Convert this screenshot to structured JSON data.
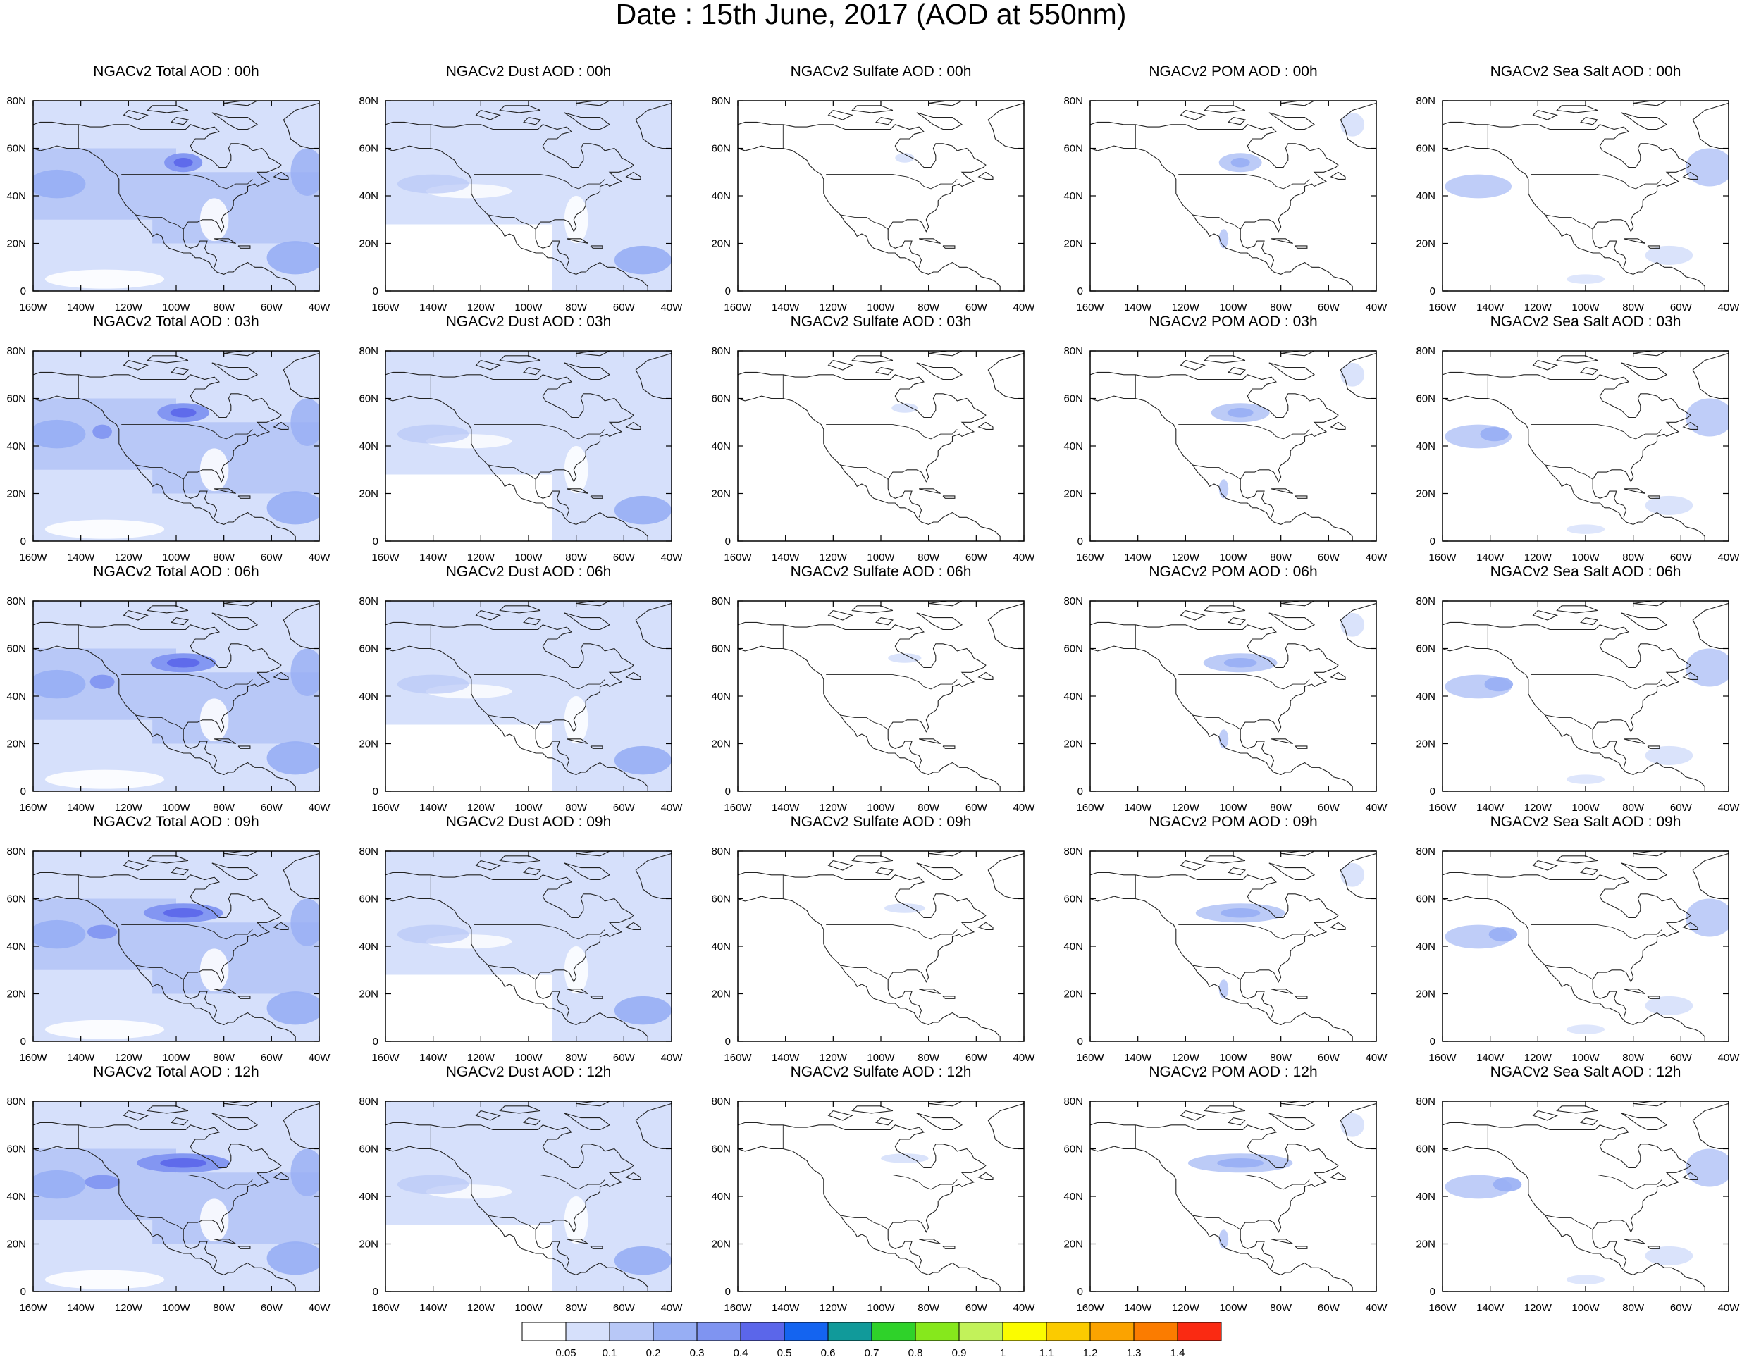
{
  "title": "Date : 15th June, 2017 (AOD at 550nm)",
  "panels": [
    {
      "title": "NGACv2 Total AOD : 00h",
      "species": "total"
    },
    {
      "title": "NGACv2 Dust AOD : 00h",
      "species": "dust"
    },
    {
      "title": "NGACv2 Sulfate AOD : 00h",
      "species": "sulfate"
    },
    {
      "title": "NGACv2 POM AOD : 00h",
      "species": "pom"
    },
    {
      "title": "NGACv2 Sea Salt AOD : 00h",
      "species": "seasalt"
    },
    {
      "title": "NGACv2 Total AOD : 03h",
      "species": "total"
    },
    {
      "title": "NGACv2 Dust AOD : 03h",
      "species": "dust"
    },
    {
      "title": "NGACv2 Sulfate AOD : 03h",
      "species": "sulfate"
    },
    {
      "title": "NGACv2 POM AOD : 03h",
      "species": "pom"
    },
    {
      "title": "NGACv2 Sea Salt AOD : 03h",
      "species": "seasalt"
    },
    {
      "title": "NGACv2 Total AOD : 06h",
      "species": "total"
    },
    {
      "title": "NGACv2 Dust AOD : 06h",
      "species": "dust"
    },
    {
      "title": "NGACv2 Sulfate AOD : 06h",
      "species": "sulfate"
    },
    {
      "title": "NGACv2 POM AOD : 06h",
      "species": "pom"
    },
    {
      "title": "NGACv2 Sea Salt AOD : 06h",
      "species": "seasalt"
    },
    {
      "title": "NGACv2 Total AOD : 09h",
      "species": "total"
    },
    {
      "title": "NGACv2 Dust AOD : 09h",
      "species": "dust"
    },
    {
      "title": "NGACv2 Sulfate AOD : 09h",
      "species": "sulfate"
    },
    {
      "title": "NGACv2 POM AOD : 09h",
      "species": "pom"
    },
    {
      "title": "NGACv2 Sea Salt  AOD : 09h",
      "species": "seasalt"
    },
    {
      "title": "NGACv2 Total AOD  : 12h",
      "species": "total"
    },
    {
      "title": "NGACv2 Dust AOD : 12h",
      "species": "dust"
    },
    {
      "title": "NGACv2 Sulfate AOD : 12h",
      "species": "sulfate"
    },
    {
      "title": "NGACv2 POM  AOD : 12h",
      "species": "pom"
    },
    {
      "title": "NGACv2 Sea Salt  AOD : 12h",
      "species": "seasalt"
    }
  ],
  "map_axes": {
    "lon_ticks": [
      "160W",
      "140W",
      "120W",
      "100W",
      "80W",
      "60W",
      "40W"
    ],
    "lat_ticks": [
      "0",
      "20N",
      "40N",
      "60N",
      "80N"
    ],
    "lon_range": [
      -160,
      -40
    ],
    "lat_range": [
      0,
      80
    ]
  },
  "colorbar": {
    "labels": [
      "0.05",
      "0.1",
      "0.2",
      "0.3",
      "0.4",
      "0.5",
      "0.6",
      "0.7",
      "0.8",
      "0.9",
      "1",
      "1.1",
      "1.2",
      "1.3",
      "1.4"
    ],
    "colors": [
      "#ffffff",
      "#d6e0fb",
      "#b8c8f7",
      "#97aef4",
      "#7f94f1",
      "#5b66ea",
      "#1464f0",
      "#119a9a",
      "#2fd22a",
      "#86e81c",
      "#c2f25a",
      "#fbfc00",
      "#fbcb00",
      "#fba300",
      "#fb7c00",
      "#fa2a12"
    ]
  }
}
